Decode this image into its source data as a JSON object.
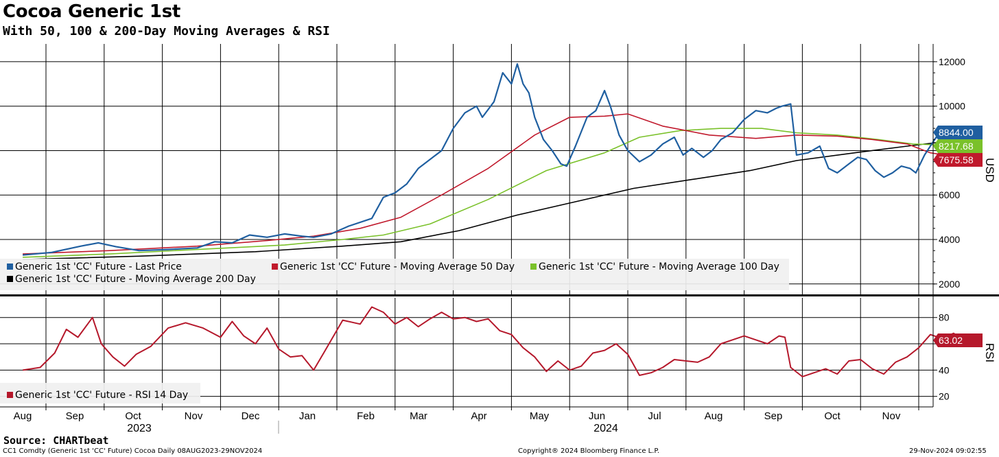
{
  "title": "Cocoa Generic 1st",
  "subtitle": "With 50, 100 & 200-Day Moving Averages & RSI",
  "source": "Source: CHARTbeat",
  "footer": {
    "left": "CC1 Comdty (Generic 1st 'CC' Future) Cocoa  Daily 08AUG2023-29NOV2024",
    "center": "Copyright® 2024 Bloomberg Finance L.P.",
    "right": "29-Nov-2024 09:02:55"
  },
  "colors": {
    "price": "#1f5fa0",
    "ma50": "#c0192c",
    "ma100": "#7ac12a",
    "ma200": "#000000",
    "rsi": "#b5182b",
    "grid": "#000000"
  },
  "chart_data": [
    {
      "type": "line",
      "panel": "price",
      "ylabel": "USD",
      "ylim": [
        1500,
        12800
      ],
      "y_ticks": [
        "12000",
        "10000",
        "8000",
        "6000",
        "4000",
        "2000"
      ],
      "x_axis": {
        "months": [
          "Aug",
          "Sep",
          "Oct",
          "Nov",
          "Dec",
          "Jan",
          "Feb",
          "Mar",
          "Apr",
          "May",
          "Jun",
          "Jul",
          "Aug",
          "Sep",
          "Oct",
          "Nov"
        ],
        "years": [
          "2023",
          "2024"
        ]
      },
      "series": [
        {
          "name": "Generic 1st 'CC' Future - Last Price",
          "color": "price",
          "last": "8844.00",
          "points": [
            [
              0,
              3300
            ],
            [
              0.5,
              3420
            ],
            [
              1.0,
              3700
            ],
            [
              1.3,
              3850
            ],
            [
              1.6,
              3680
            ],
            [
              2.0,
              3500
            ],
            [
              2.5,
              3550
            ],
            [
              3.0,
              3620
            ],
            [
              3.3,
              3900
            ],
            [
              3.6,
              3850
            ],
            [
              3.9,
              4200
            ],
            [
              4.2,
              4100
            ],
            [
              4.5,
              4250
            ],
            [
              4.8,
              4150
            ],
            [
              5.0,
              4100
            ],
            [
              5.3,
              4250
            ],
            [
              5.6,
              4600
            ],
            [
              6.0,
              4950
            ],
            [
              6.2,
              5900
            ],
            [
              6.4,
              6100
            ],
            [
              6.6,
              6500
            ],
            [
              6.8,
              7200
            ],
            [
              7.0,
              7600
            ],
            [
              7.2,
              8000
            ],
            [
              7.4,
              9000
            ],
            [
              7.6,
              9700
            ],
            [
              7.8,
              10000
            ],
            [
              7.9,
              9500
            ],
            [
              8.1,
              10200
            ],
            [
              8.25,
              11500
            ],
            [
              8.4,
              11000
            ],
            [
              8.5,
              11900
            ],
            [
              8.6,
              11000
            ],
            [
              8.7,
              10600
            ],
            [
              8.8,
              9500
            ],
            [
              8.95,
              8500
            ],
            [
              9.1,
              8000
            ],
            [
              9.25,
              7400
            ],
            [
              9.35,
              7300
            ],
            [
              9.5,
              8200
            ],
            [
              9.7,
              9500
            ],
            [
              9.85,
              9800
            ],
            [
              10.0,
              10700
            ],
            [
              10.1,
              10000
            ],
            [
              10.25,
              8700
            ],
            [
              10.4,
              8000
            ],
            [
              10.6,
              7500
            ],
            [
              10.8,
              7800
            ],
            [
              11.0,
              8300
            ],
            [
              11.2,
              8600
            ],
            [
              11.35,
              7800
            ],
            [
              11.5,
              8100
            ],
            [
              11.7,
              7700
            ],
            [
              11.85,
              8000
            ],
            [
              12.0,
              8500
            ],
            [
              12.2,
              8800
            ],
            [
              12.4,
              9400
            ],
            [
              12.6,
              9800
            ],
            [
              12.8,
              9700
            ],
            [
              12.95,
              9900
            ],
            [
              13.05,
              10000
            ],
            [
              13.2,
              10100
            ],
            [
              13.3,
              7800
            ],
            [
              13.5,
              7900
            ],
            [
              13.7,
              8200
            ],
            [
              13.85,
              7200
            ],
            [
              14.0,
              7000
            ],
            [
              14.2,
              7400
            ],
            [
              14.35,
              7700
            ],
            [
              14.5,
              7600
            ],
            [
              14.65,
              7100
            ],
            [
              14.8,
              6800
            ],
            [
              14.95,
              7000
            ],
            [
              15.1,
              7300
            ],
            [
              15.25,
              7200
            ],
            [
              15.35,
              7000
            ],
            [
              15.5,
              7800
            ],
            [
              15.7,
              8600
            ],
            [
              15.85,
              8400
            ],
            [
              16.0,
              8900
            ],
            [
              16.15,
              8844
            ]
          ]
        },
        {
          "name": "Generic 1st 'CC' Future - Moving Average 50 Day",
          "color": "ma50",
          "last": "7675.58",
          "points": [
            [
              0,
              3350
            ],
            [
              1.5,
              3500
            ],
            [
              3.0,
              3700
            ],
            [
              4.2,
              3950
            ],
            [
              5.0,
              4150
            ],
            [
              5.8,
              4500
            ],
            [
              6.5,
              5000
            ],
            [
              7.2,
              6000
            ],
            [
              8.0,
              7200
            ],
            [
              8.8,
              8700
            ],
            [
              9.4,
              9500
            ],
            [
              10.0,
              9550
            ],
            [
              10.4,
              9650
            ],
            [
              11.0,
              9100
            ],
            [
              11.8,
              8700
            ],
            [
              12.6,
              8550
            ],
            [
              13.3,
              8700
            ],
            [
              14.0,
              8650
            ],
            [
              14.6,
              8500
            ],
            [
              15.2,
              8300
            ],
            [
              15.6,
              7900
            ],
            [
              16.15,
              7675
            ]
          ]
        },
        {
          "name": "Generic 1st 'CC' Future - Moving Average 100 Day",
          "color": "ma100",
          "last": "8217.68",
          "points": [
            [
              0,
              3200
            ],
            [
              1.5,
              3350
            ],
            [
              3.0,
              3550
            ],
            [
              4.5,
              3750
            ],
            [
              5.5,
              4000
            ],
            [
              6.2,
              4200
            ],
            [
              7.0,
              4700
            ],
            [
              8.0,
              5800
            ],
            [
              9.0,
              7100
            ],
            [
              10.0,
              7900
            ],
            [
              10.6,
              8600
            ],
            [
              11.3,
              8900
            ],
            [
              12.0,
              9000
            ],
            [
              12.7,
              9000
            ],
            [
              13.3,
              8800
            ],
            [
              14.0,
              8700
            ],
            [
              14.7,
              8500
            ],
            [
              15.3,
              8300
            ],
            [
              16.15,
              8218
            ]
          ]
        },
        {
          "name": "Generic 1st 'CC' Future - Moving Average 200 Day",
          "color": "ma200",
          "last": "",
          "points": [
            [
              0,
              3100
            ],
            [
              2.0,
              3250
            ],
            [
              4.0,
              3450
            ],
            [
              5.5,
              3700
            ],
            [
              6.5,
              3900
            ],
            [
              7.5,
              4400
            ],
            [
              8.5,
              5100
            ],
            [
              9.5,
              5700
            ],
            [
              10.5,
              6300
            ],
            [
              11.5,
              6700
            ],
            [
              12.5,
              7100
            ],
            [
              13.3,
              7550
            ],
            [
              14.3,
              7900
            ],
            [
              15.2,
              8200
            ],
            [
              16.15,
              8500
            ]
          ]
        }
      ]
    },
    {
      "type": "line",
      "panel": "rsi",
      "ylabel": "RSI",
      "ylim": [
        12,
        95
      ],
      "y_ticks": [
        "80",
        "60",
        "40",
        "20"
      ],
      "series": [
        {
          "name": "Generic 1st 'CC' Future - RSI 14 Day",
          "color": "rsi",
          "last": "63.02",
          "points": [
            [
              0,
              40
            ],
            [
              0.3,
              42
            ],
            [
              0.55,
              53
            ],
            [
              0.75,
              71
            ],
            [
              0.95,
              65
            ],
            [
              1.2,
              80
            ],
            [
              1.35,
              60
            ],
            [
              1.55,
              50
            ],
            [
              1.75,
              43
            ],
            [
              1.95,
              52
            ],
            [
              2.2,
              58
            ],
            [
              2.5,
              72
            ],
            [
              2.8,
              76
            ],
            [
              3.1,
              72
            ],
            [
              3.4,
              65
            ],
            [
              3.6,
              77
            ],
            [
              3.8,
              66
            ],
            [
              4.0,
              60
            ],
            [
              4.2,
              72
            ],
            [
              4.4,
              56
            ],
            [
              4.6,
              50
            ],
            [
              4.8,
              51
            ],
            [
              5.0,
              40
            ],
            [
              5.2,
              55
            ],
            [
              5.5,
              78
            ],
            [
              5.8,
              75
            ],
            [
              6.0,
              88
            ],
            [
              6.2,
              84
            ],
            [
              6.4,
              75
            ],
            [
              6.6,
              80
            ],
            [
              6.8,
              73
            ],
            [
              7.0,
              79
            ],
            [
              7.2,
              84
            ],
            [
              7.4,
              79
            ],
            [
              7.6,
              80
            ],
            [
              7.8,
              77
            ],
            [
              8.0,
              79
            ],
            [
              8.2,
              70
            ],
            [
              8.4,
              67
            ],
            [
              8.6,
              57
            ],
            [
              8.8,
              50
            ],
            [
              9.0,
              39
            ],
            [
              9.2,
              47
            ],
            [
              9.4,
              40
            ],
            [
              9.6,
              43
            ],
            [
              9.8,
              53
            ],
            [
              10.0,
              55
            ],
            [
              10.2,
              60
            ],
            [
              10.4,
              52
            ],
            [
              10.6,
              36
            ],
            [
              10.8,
              38
            ],
            [
              11.0,
              42
            ],
            [
              11.2,
              48
            ],
            [
              11.4,
              47
            ],
            [
              11.6,
              46
            ],
            [
              11.8,
              50
            ],
            [
              12.0,
              60
            ],
            [
              12.2,
              63
            ],
            [
              12.4,
              66
            ],
            [
              12.6,
              63
            ],
            [
              12.8,
              60
            ],
            [
              13.0,
              66
            ],
            [
              13.1,
              65
            ],
            [
              13.2,
              42
            ],
            [
              13.4,
              35
            ],
            [
              13.6,
              38
            ],
            [
              13.8,
              41
            ],
            [
              14.0,
              37
            ],
            [
              14.2,
              47
            ],
            [
              14.4,
              48
            ],
            [
              14.6,
              41
            ],
            [
              14.8,
              37
            ],
            [
              15.0,
              46
            ],
            [
              15.2,
              50
            ],
            [
              15.4,
              57
            ],
            [
              15.6,
              67
            ],
            [
              15.8,
              64
            ],
            [
              16.0,
              68
            ],
            [
              16.15,
              63
            ]
          ]
        }
      ]
    }
  ]
}
